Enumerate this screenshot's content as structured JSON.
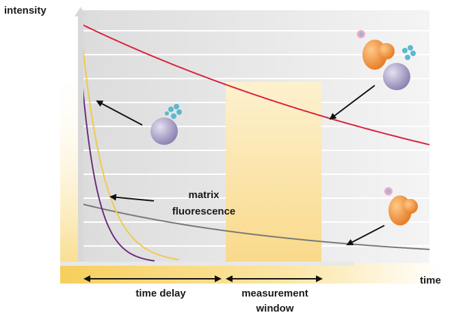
{
  "labels": {
    "y_axis": "intensity",
    "x_axis": "time",
    "matrix_fluorescence": [
      "matrix",
      "fluorescence"
    ],
    "time_delay": "time delay",
    "measurement_window": [
      "measurement",
      "window"
    ]
  }
}
